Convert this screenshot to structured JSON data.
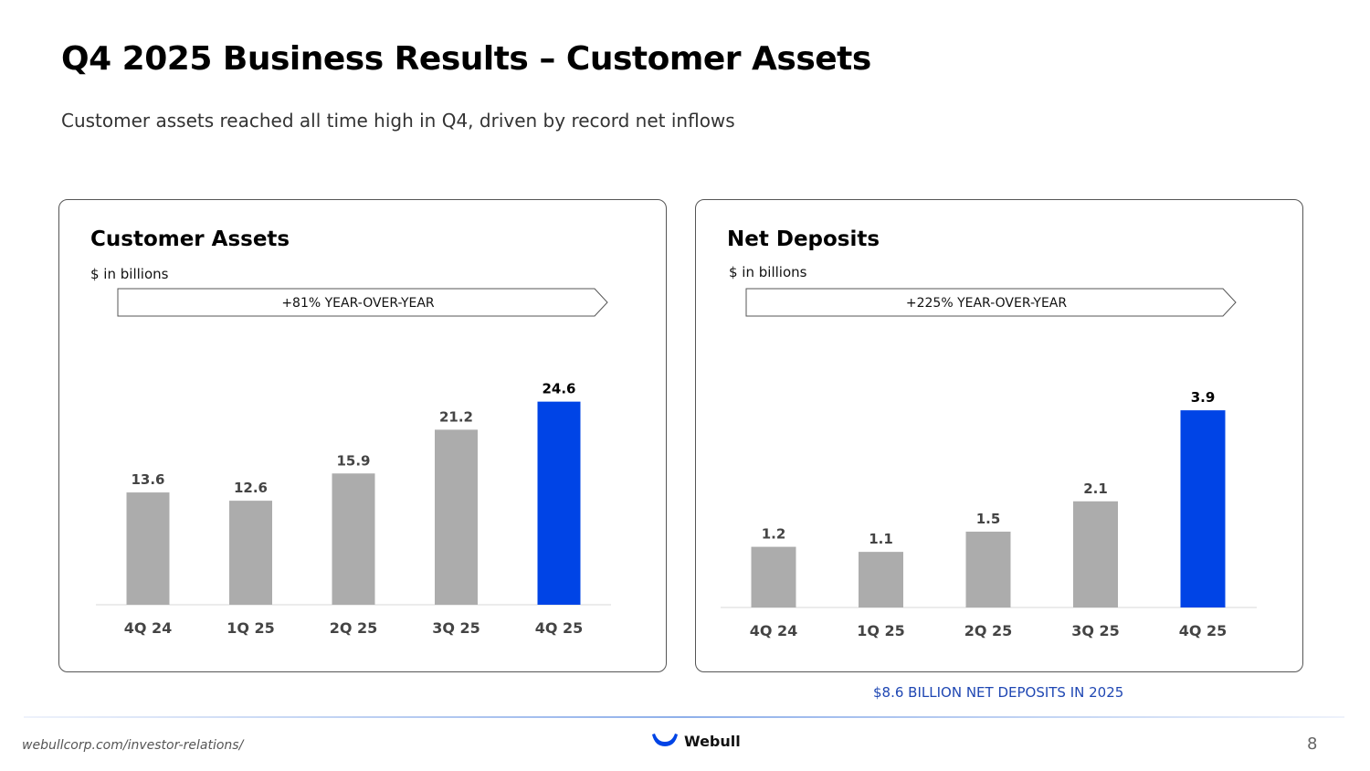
{
  "header": {
    "title": "Q4 2025 Business Results – Customer Assets",
    "subtitle": "Customer assets reached all time high in Q4, driven by record net inflows"
  },
  "colors": {
    "highlight": "#0044e6",
    "base": "#acacac",
    "note": "#1f47b3"
  },
  "chart_data": [
    {
      "type": "bar",
      "title": "Customer Assets",
      "units": "$ in billions",
      "banner": "+81% YEAR-OVER-YEAR",
      "categories": [
        "4Q 24",
        "1Q 25",
        "2Q 25",
        "3Q 25",
        "4Q 25"
      ],
      "values": [
        13.6,
        12.6,
        15.9,
        21.2,
        24.6
      ],
      "labels": [
        "13.6",
        "12.6",
        "15.9",
        "21.2",
        "24.6"
      ],
      "highlight_index": 4,
      "ylim": [
        0,
        26
      ]
    },
    {
      "type": "bar",
      "title": "Net Deposits",
      "units": "$ in billions",
      "banner": "+225% YEAR-OVER-YEAR",
      "categories": [
        "4Q 24",
        "1Q 25",
        "2Q 25",
        "3Q 25",
        "4Q 25"
      ],
      "values": [
        1.2,
        1.1,
        1.5,
        2.1,
        3.9
      ],
      "labels": [
        "1.2",
        "1.1",
        "1.5",
        "2.1",
        "3.9"
      ],
      "highlight_index": 4,
      "ylim": [
        0,
        4.3
      ]
    }
  ],
  "footer": {
    "note": "$8.6 BILLION NET DEPOSITS IN 2025",
    "url": "webullcorp.com/investor-relations/",
    "logo_text": "Webull",
    "page_number": "8"
  }
}
